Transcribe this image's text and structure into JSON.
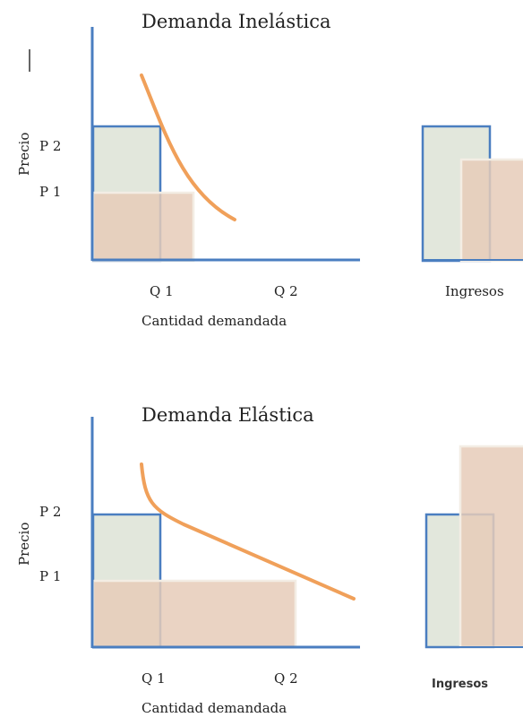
{
  "colors": {
    "axis": "#4a7ec0",
    "curve": "#f0a05a",
    "rect_green_fill": "#e2e7dc",
    "rect_tan_fill": "#e6cbb8",
    "rect_tan_stroke": "#f3ede4"
  },
  "inelastic": {
    "title": "Demanda Inelástica",
    "ylabel": "Precio",
    "p2": "P 2",
    "p1": "P 1",
    "q1": "Q 1",
    "q2": "Q 2",
    "xlabel": "Cantidad demandada",
    "ingresos": "Ingresos"
  },
  "elastic": {
    "title": "Demanda Elástica",
    "ylabel": "Precio",
    "p2": "P 2",
    "p1": "P 1",
    "q1": "Q 1",
    "q2": "Q 2",
    "xlabel": "Cantidad demandada",
    "ingresos": "Ingresos"
  }
}
